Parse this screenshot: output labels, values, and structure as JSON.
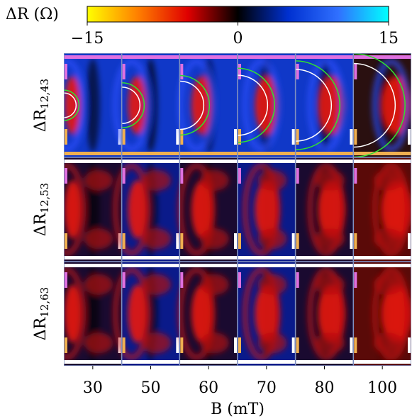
{
  "chart_data": {
    "type": "heatmap-grid",
    "colorbar": {
      "label": "ΔR (Ω)",
      "lim": [
        -15,
        15
      ],
      "ticks": [
        {
          "value": -15,
          "label": "−15"
        },
        0,
        15
      ],
      "colors": [
        "#ffff00",
        "#ff8000",
        "#e00000",
        "#000000",
        "#0030d0",
        "#3070ff",
        "#00ffff"
      ]
    },
    "rows": [
      {
        "symbol": "ΔR",
        "subscript": "12,43"
      },
      {
        "symbol": "ΔR",
        "subscript": "12,53"
      },
      {
        "symbol": "ΔR",
        "subscript": "12,63"
      }
    ],
    "categories": [
      30,
      50,
      60,
      70,
      80,
      100
    ],
    "xlabel": "B (mT)"
  }
}
